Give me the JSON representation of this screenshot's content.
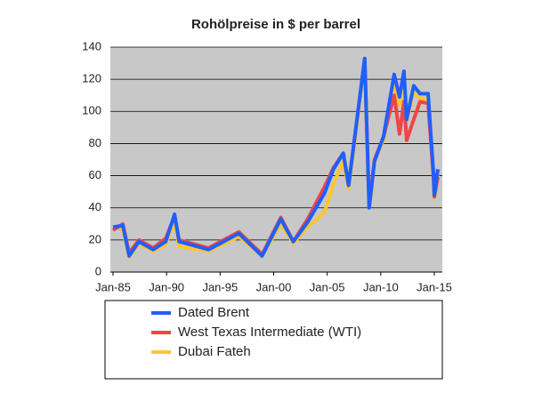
{
  "chart_data": {
    "type": "line",
    "title": "Rohölpreise in $ per barrel",
    "x": [
      "1985-01",
      "1985-12",
      "1986-07",
      "1987-06",
      "1988-10",
      "1989-12",
      "1990-10",
      "1991-03",
      "1993-12",
      "1996-10",
      "1998-12",
      "2000-09",
      "2001-11",
      "2003-03",
      "2004-10",
      "2005-08",
      "2006-07",
      "2007-01",
      "2008-07",
      "2008-12",
      "2009-06",
      "2010-04",
      "2011-04",
      "2011-10",
      "2012-03",
      "2012-06",
      "2013-02",
      "2013-09",
      "2014-06",
      "2014-12",
      "2015-01",
      "2015-05"
    ],
    "series": [
      {
        "name": "Dated Brent",
        "color": "#1f5fff",
        "values": [
          28,
          29,
          10,
          19,
          14,
          19,
          36,
          19,
          14,
          24,
          10,
          33,
          19,
          31,
          49,
          64,
          74,
          54,
          133,
          40,
          69,
          84,
          123,
          109,
          125,
          95,
          116,
          111,
          111,
          62,
          48,
          64
        ]
      },
      {
        "name": "West Texas Intermediate (WTI)",
        "color": "#f04545",
        "values": [
          26,
          30,
          12,
          20,
          15,
          21,
          35,
          20,
          15,
          25,
          11,
          34,
          19,
          33,
          53,
          65,
          74,
          54,
          133,
          41,
          70,
          84,
          110,
          86,
          106,
          82,
          95,
          106,
          105,
          59,
          47,
          59
        ]
      },
      {
        "name": "Dubai Fateh",
        "color": "#ffc52e",
        "values": [
          27,
          27,
          9,
          18,
          13,
          17,
          32,
          16,
          13,
          22,
          10,
          30,
          18,
          28,
          37,
          55,
          69,
          52,
          131,
          40,
          69,
          82,
          118,
          104,
          122,
          94,
          112,
          108,
          108,
          60,
          46,
          62
        ]
      }
    ],
    "xlim": [
      "1984-10",
      "2015-10"
    ],
    "xticks": [
      {
        "value": "1985-01",
        "label": "Jan-85"
      },
      {
        "value": "1990-01",
        "label": "Jan-90"
      },
      {
        "value": "1995-01",
        "label": "Jan-95"
      },
      {
        "value": "2000-01",
        "label": "Jan-00"
      },
      {
        "value": "2005-01",
        "label": "Jan-05"
      },
      {
        "value": "2010-01",
        "label": "Jan-10"
      },
      {
        "value": "2015-01",
        "label": "Jan-15"
      }
    ],
    "ylim": [
      0,
      140
    ],
    "yticks": [
      0,
      20,
      40,
      60,
      80,
      100,
      120,
      140
    ],
    "grid": true
  }
}
